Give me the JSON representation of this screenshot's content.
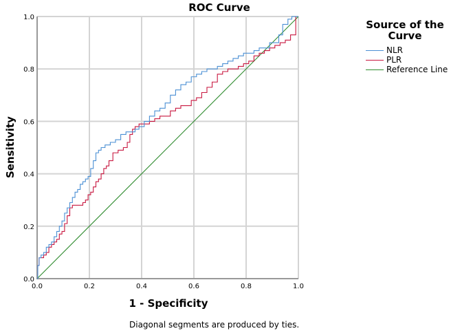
{
  "chart_data": {
    "type": "line",
    "title": "ROC Curve",
    "xlabel": "1 - Specificity",
    "ylabel": "Sensitivity",
    "xlim": [
      0,
      1
    ],
    "ylim": [
      0,
      1
    ],
    "xticks": [
      "0.0",
      "0.2",
      "0.4",
      "0.6",
      "0.8",
      "1.0"
    ],
    "yticks": [
      "0.0",
      "0.2",
      "0.4",
      "0.6",
      "0.8",
      "1.0"
    ],
    "grid": true,
    "legend": {
      "title": "Source of the Curve",
      "placement": "right"
    },
    "footnote": "Diagonal segments are produced by ties.",
    "series": [
      {
        "name": "NLR",
        "color": "#4a8fd4",
        "x": [
          0,
          0.005,
          0.01,
          0.02,
          0.03,
          0.04,
          0.05,
          0.06,
          0.07,
          0.08,
          0.09,
          0.1,
          0.11,
          0.12,
          0.13,
          0.14,
          0.15,
          0.16,
          0.17,
          0.18,
          0.19,
          0.2,
          0.21,
          0.22,
          0.23,
          0.24,
          0.25,
          0.27,
          0.29,
          0.31,
          0.33,
          0.35,
          0.37,
          0.38,
          0.4,
          0.42,
          0.44,
          0.46,
          0.48,
          0.5,
          0.52,
          0.54,
          0.56,
          0.58,
          0.6,
          0.62,
          0.64,
          0.66,
          0.68,
          0.7,
          0.72,
          0.74,
          0.76,
          0.78,
          0.8,
          0.82,
          0.84,
          0.86,
          0.88,
          0.9,
          0.92,
          0.93,
          0.95,
          0.97,
          0.98,
          1.0
        ],
        "y": [
          0,
          0.05,
          0.08,
          0.09,
          0.1,
          0.12,
          0.13,
          0.14,
          0.16,
          0.18,
          0.2,
          0.22,
          0.25,
          0.27,
          0.29,
          0.31,
          0.33,
          0.34,
          0.36,
          0.37,
          0.38,
          0.39,
          0.42,
          0.45,
          0.48,
          0.49,
          0.5,
          0.51,
          0.52,
          0.53,
          0.55,
          0.56,
          0.56,
          0.57,
          0.58,
          0.6,
          0.62,
          0.64,
          0.65,
          0.67,
          0.7,
          0.72,
          0.74,
          0.75,
          0.77,
          0.78,
          0.79,
          0.8,
          0.8,
          0.81,
          0.82,
          0.83,
          0.84,
          0.85,
          0.86,
          0.86,
          0.87,
          0.88,
          0.88,
          0.9,
          0.9,
          0.93,
          0.97,
          0.99,
          1.0,
          1.0
        ]
      },
      {
        "name": "PLR",
        "color": "#c8163f",
        "x": [
          0,
          0.005,
          0.01,
          0.02,
          0.03,
          0.04,
          0.05,
          0.06,
          0.07,
          0.08,
          0.09,
          0.1,
          0.11,
          0.12,
          0.13,
          0.14,
          0.16,
          0.17,
          0.18,
          0.19,
          0.2,
          0.21,
          0.22,
          0.23,
          0.24,
          0.25,
          0.26,
          0.27,
          0.28,
          0.3,
          0.32,
          0.34,
          0.35,
          0.36,
          0.37,
          0.38,
          0.4,
          0.42,
          0.44,
          0.46,
          0.48,
          0.5,
          0.52,
          0.54,
          0.56,
          0.58,
          0.6,
          0.62,
          0.64,
          0.66,
          0.68,
          0.7,
          0.72,
          0.74,
          0.76,
          0.78,
          0.8,
          0.82,
          0.84,
          0.86,
          0.88,
          0.9,
          0.92,
          0.94,
          0.96,
          0.98,
          1.0
        ],
        "y": [
          0,
          0.05,
          0.08,
          0.08,
          0.09,
          0.1,
          0.12,
          0.13,
          0.14,
          0.15,
          0.17,
          0.18,
          0.21,
          0.24,
          0.27,
          0.28,
          0.28,
          0.28,
          0.29,
          0.3,
          0.32,
          0.33,
          0.35,
          0.37,
          0.38,
          0.4,
          0.42,
          0.43,
          0.45,
          0.48,
          0.49,
          0.5,
          0.52,
          0.55,
          0.57,
          0.58,
          0.59,
          0.59,
          0.6,
          0.61,
          0.62,
          0.62,
          0.64,
          0.65,
          0.66,
          0.66,
          0.68,
          0.69,
          0.71,
          0.73,
          0.75,
          0.78,
          0.79,
          0.8,
          0.8,
          0.81,
          0.82,
          0.83,
          0.85,
          0.86,
          0.87,
          0.88,
          0.89,
          0.9,
          0.91,
          0.93,
          1.0
        ]
      },
      {
        "name": "Reference Line",
        "color": "#2e8b2e",
        "x": [
          0,
          1
        ],
        "y": [
          0,
          1
        ]
      }
    ]
  }
}
